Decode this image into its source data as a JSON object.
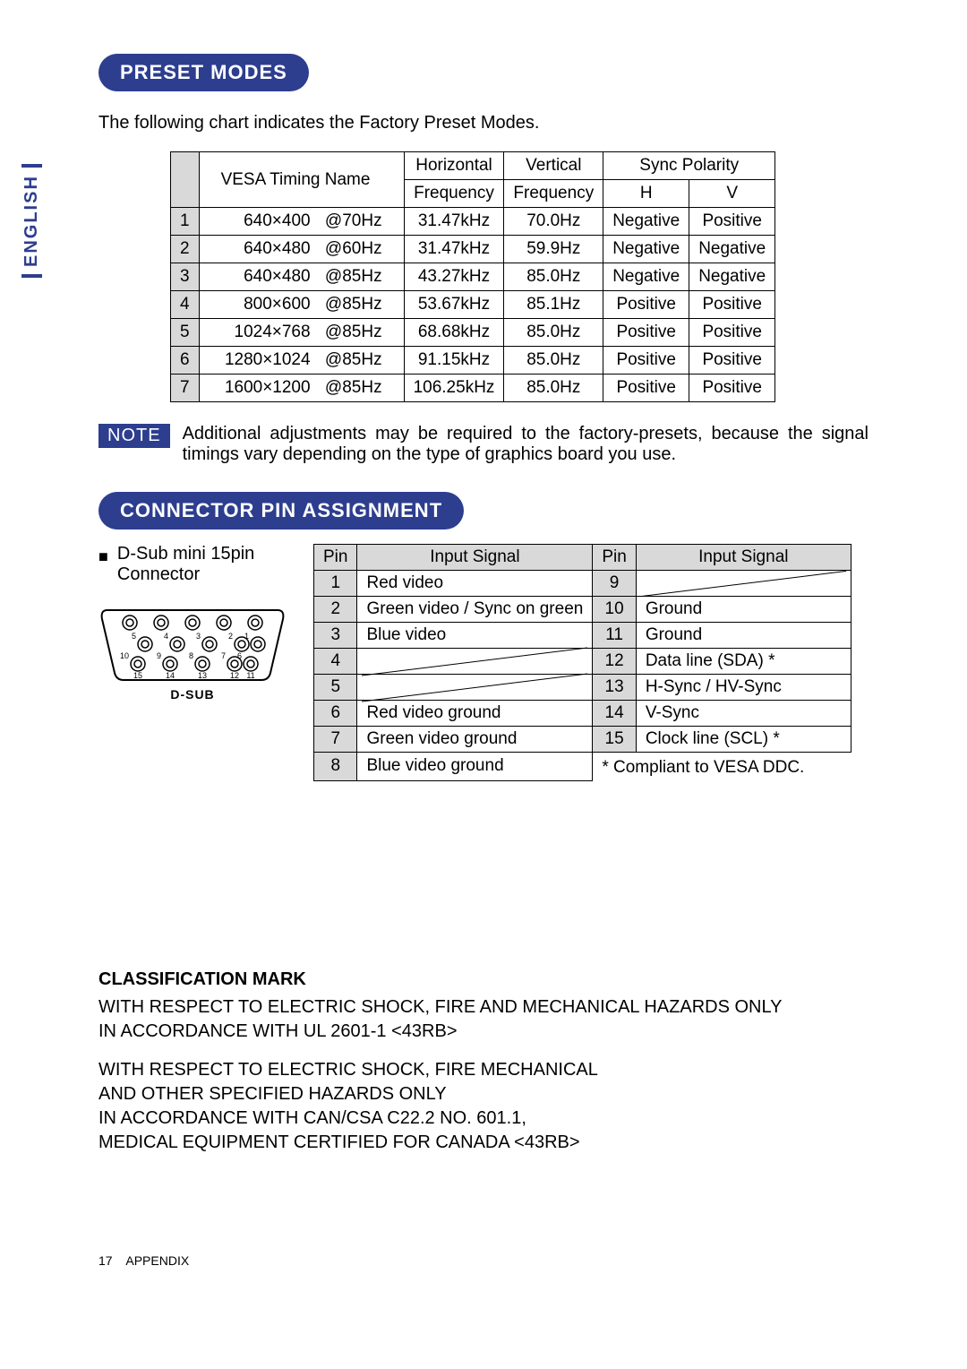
{
  "language_tab": "ENGLISH",
  "section_preset": {
    "title": "PRESET MODES",
    "intro": "The following chart indicates the Factory Preset Modes.",
    "header": {
      "timing": "VESA Timing Name",
      "hfreq_l1": "Horizontal",
      "hfreq_l2": "Frequency",
      "vfreq_l1": "Vertical",
      "vfreq_l2": "Frequency",
      "sync": "Sync Polarity",
      "sync_h": "H",
      "sync_v": "V"
    },
    "rows": [
      {
        "n": "1",
        "res": "640×400",
        "rate": "@70Hz",
        "h": "31.47kHz",
        "v": "70.0Hz",
        "sh": "Negative",
        "sv": "Positive"
      },
      {
        "n": "2",
        "res": "640×480",
        "rate": "@60Hz",
        "h": "31.47kHz",
        "v": "59.9Hz",
        "sh": "Negative",
        "sv": "Negative"
      },
      {
        "n": "3",
        "res": "640×480",
        "rate": "@85Hz",
        "h": "43.27kHz",
        "v": "85.0Hz",
        "sh": "Negative",
        "sv": "Negative"
      },
      {
        "n": "4",
        "res": "800×600",
        "rate": "@85Hz",
        "h": "53.67kHz",
        "v": "85.1Hz",
        "sh": "Positive",
        "sv": "Positive"
      },
      {
        "n": "5",
        "res": "1024×768",
        "rate": "@85Hz",
        "h": "68.68kHz",
        "v": "85.0Hz",
        "sh": "Positive",
        "sv": "Positive"
      },
      {
        "n": "6",
        "res": "1280×1024",
        "rate": "@85Hz",
        "h": "91.15kHz",
        "v": "85.0Hz",
        "sh": "Positive",
        "sv": "Positive"
      },
      {
        "n": "7",
        "res": "1600×1200",
        "rate": "@85Hz",
        "h": "106.25kHz",
        "v": "85.0Hz",
        "sh": "Positive",
        "sv": "Positive"
      }
    ]
  },
  "note": {
    "badge": "NOTE",
    "text": "Additional adjustments may be required to the factory-presets, because the signal timings vary depending on the type of graphics board you use."
  },
  "section_conn": {
    "title": "CONNECTOR PIN ASSIGNMENT",
    "connector_l1": "D-Sub mini 15pin",
    "connector_l2": "Connector",
    "diagram_label": "D-SUB",
    "diagram_labels": {
      "p1": "1",
      "p2": "2",
      "p3": "3",
      "p4": "4",
      "p5": "5",
      "p6": "6",
      "p7": "7",
      "p8": "8",
      "p9": "9",
      "p10": "10",
      "p11": "11",
      "p12": "12",
      "p13": "13",
      "p14": "14",
      "p15": "15"
    },
    "header_pin": "Pin",
    "header_sig": "Input Signal",
    "rows": [
      {
        "p": "1",
        "s": "Red video",
        "p2": "9",
        "s2": "",
        "nc2": true
      },
      {
        "p": "2",
        "s": "Green video / Sync on green",
        "p2": "10",
        "s2": "Ground"
      },
      {
        "p": "3",
        "s": "Blue video",
        "p2": "11",
        "s2": "Ground"
      },
      {
        "p": "4",
        "s": "",
        "nc": true,
        "p2": "12",
        "s2": "Data line (SDA) *"
      },
      {
        "p": "5",
        "s": "",
        "nc": true,
        "p2": "13",
        "s2": "H-Sync / HV-Sync"
      },
      {
        "p": "6",
        "s": "Red video ground",
        "p2": "14",
        "s2": "V-Sync"
      },
      {
        "p": "7",
        "s": "Green video ground",
        "p2": "15",
        "s2": "Clock line (SCL) *"
      },
      {
        "p": "8",
        "s": "Blue video ground",
        "note": "* Compliant to VESA DDC."
      }
    ]
  },
  "classification": {
    "title": "CLASSIFICATION MARK",
    "p1_l1": "WITH RESPECT TO ELECTRIC SHOCK, FIRE AND MECHANICAL HAZARDS ONLY",
    "p1_l2": "IN ACCORDANCE WITH UL 2601-1 <43RB>",
    "p2_l1": "WITH RESPECT TO ELECTRIC SHOCK, FIRE MECHANICAL",
    "p2_l2": "AND OTHER SPECIFIED HAZARDS ONLY",
    "p2_l3": "IN ACCORDANCE WITH CAN/CSA C22.2 NO. 601.1,",
    "p2_l4": "MEDICAL EQUIPMENT CERTIFIED FOR CANADA <43RB>"
  },
  "footer": {
    "page": "17",
    "section": "APPENDIX"
  }
}
